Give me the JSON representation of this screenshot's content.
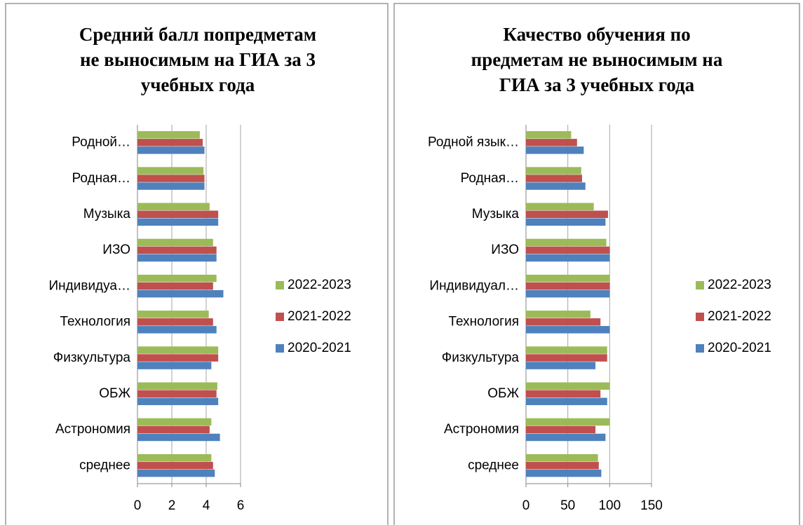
{
  "chart_data": [
    {
      "type": "bar",
      "orientation": "horizontal",
      "title": [
        "Средний балл попредметам",
        "не выносимым на ГИА за 3",
        "учебных года"
      ],
      "categories": [
        "Родной…",
        "Родная…",
        "Музыка",
        "ИЗО",
        "Индивидуа…",
        "Технология",
        "Физкультура",
        "ОБЖ",
        "Астрономия",
        "среднее"
      ],
      "series": [
        {
          "name": "2022-2023",
          "color": "#9bbb59",
          "values": [
            3.63,
            3.84,
            4.2,
            4.4,
            4.6,
            4.15,
            4.7,
            4.65,
            4.3,
            4.3
          ]
        },
        {
          "name": "2021-2022",
          "color": "#c0504d",
          "values": [
            3.8,
            3.9,
            4.7,
            4.6,
            4.4,
            4.4,
            4.7,
            4.6,
            4.2,
            4.4
          ]
        },
        {
          "name": "2020-2021",
          "color": "#4f81bd",
          "values": [
            3.9,
            3.9,
            4.7,
            4.6,
            5.0,
            4.6,
            4.3,
            4.7,
            4.8,
            4.5
          ]
        }
      ],
      "xlim": [
        0,
        6
      ],
      "xticks": [
        0,
        2,
        4,
        6
      ],
      "grid": true,
      "legend": "right"
    },
    {
      "type": "bar",
      "orientation": "horizontal",
      "title": [
        "Качество обучения по",
        "предметам не выносимым на",
        "ГИА за 3 учебных года"
      ],
      "categories": [
        "Родной язык…",
        "Родная…",
        "Музыка",
        "ИЗО",
        "Индивидуал…",
        "Технология",
        "Физкультура",
        "ОБЖ",
        "Астрономия",
        "среднее"
      ],
      "series": [
        {
          "name": "2022-2023",
          "color": "#9bbb59",
          "values": [
            54,
            66,
            81,
            96,
            100,
            77,
            97,
            100,
            100,
            86
          ]
        },
        {
          "name": "2021-2022",
          "color": "#c0504d",
          "values": [
            61,
            67,
            98,
            100,
            100,
            89,
            97,
            89,
            83,
            87
          ]
        },
        {
          "name": "2020-2021",
          "color": "#4f81bd",
          "values": [
            69,
            71,
            95,
            100,
            100,
            100,
            83,
            97,
            95,
            90
          ]
        }
      ],
      "xlim": [
        0,
        150
      ],
      "xticks": [
        0,
        50,
        100,
        150
      ],
      "grid": true,
      "legend": "right"
    }
  ]
}
